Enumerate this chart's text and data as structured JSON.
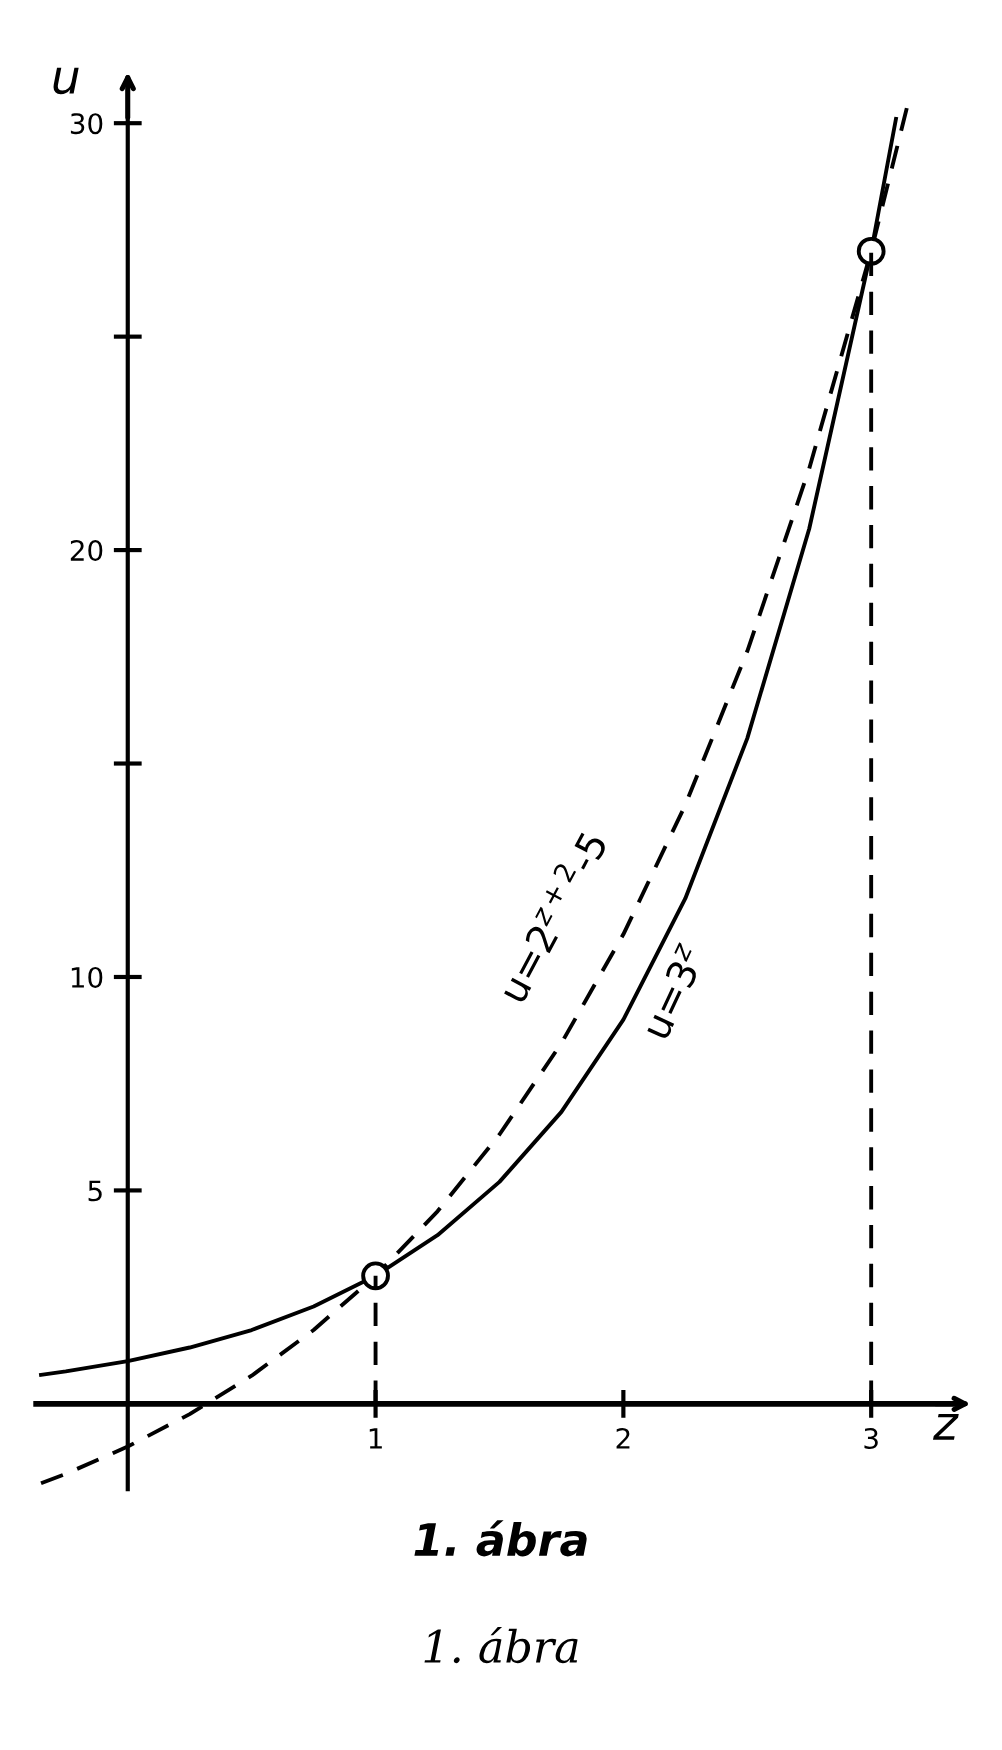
{
  "chart_data": {
    "type": "line",
    "title": "1. ábra",
    "xlabel": "z",
    "ylabel": "u",
    "xlim": [
      -0.37,
      3.35
    ],
    "ylim": [
      -2,
      31
    ],
    "xticks": [
      1,
      2,
      3
    ],
    "yticks": [
      5,
      10,
      {
        "value": 15,
        "label": null
      },
      20,
      {
        "value": 25,
        "label": null
      },
      30
    ],
    "grid": false,
    "series": [
      {
        "color": "#000000",
        "line_style": "solid",
        "marker": "none",
        "x": [
          -0.35,
          -0.25,
          0,
          0.25,
          0.5,
          0.75,
          1,
          1.25,
          1.5,
          1.75,
          2,
          2.25,
          2.5,
          2.75,
          3,
          3.1
        ],
        "values": [
          0.68,
          0.76,
          1,
          1.32,
          1.73,
          2.28,
          3,
          3.95,
          5.2,
          6.84,
          9,
          11.84,
          15.59,
          20.5,
          27,
          30.1
        ]
      },
      {
        "color": "#000000",
        "line_style": "dashed",
        "marker": "none",
        "x": [
          -0.35,
          -0.25,
          0,
          0.25,
          0.5,
          0.75,
          1,
          1.25,
          1.5,
          1.75,
          2,
          2.25,
          2.5,
          2.75,
          3,
          3.15
        ],
        "values": [
          -1.86,
          -1.64,
          -1,
          -0.24,
          0.66,
          1.73,
          3,
          4.51,
          6.31,
          8.45,
          11,
          14.03,
          17.63,
          21.91,
          27,
          30.5
        ]
      },
      {
        "type": "scatter",
        "color": "#000000",
        "marker": "circle",
        "x": [
          1,
          3
        ],
        "values": [
          3,
          27
        ]
      }
    ],
    "ref_lines": [
      {
        "axis": "x",
        "value": 1,
        "color": "#000000",
        "line_style": "dashed"
      },
      {
        "axis": "x",
        "value": 3,
        "color": "#000000",
        "line_style": "dashed"
      }
    ],
    "annotations": [
      "u=2$^{z+2}$-5",
      "u=3$^{z}$",
      "1. ábra"
    ]
  }
}
